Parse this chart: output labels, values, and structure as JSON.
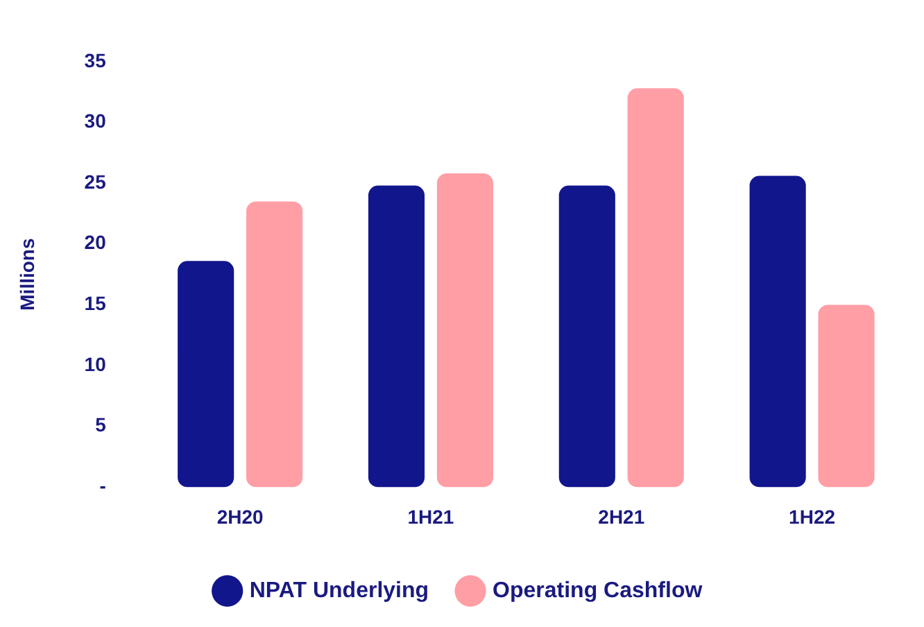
{
  "chart_data": {
    "type": "bar",
    "ylabel": "Millions",
    "categories": [
      "2H20",
      "1H21",
      "2H21",
      "1H22"
    ],
    "series": [
      {
        "name": "NPAT Underlying",
        "color": "#12168c",
        "values": [
          18.6,
          24.8,
          24.8,
          25.6
        ]
      },
      {
        "name": "Operating Cashflow",
        "color": "#ff9ea5",
        "values": [
          23.5,
          25.8,
          32.8,
          15.0
        ]
      }
    ],
    "ylim": [
      0,
      35
    ],
    "yticks": [
      {
        "value": 0,
        "label": "-"
      },
      5,
      10,
      15,
      20,
      25,
      30,
      35
    ],
    "grid": false,
    "legend": "bottom"
  }
}
